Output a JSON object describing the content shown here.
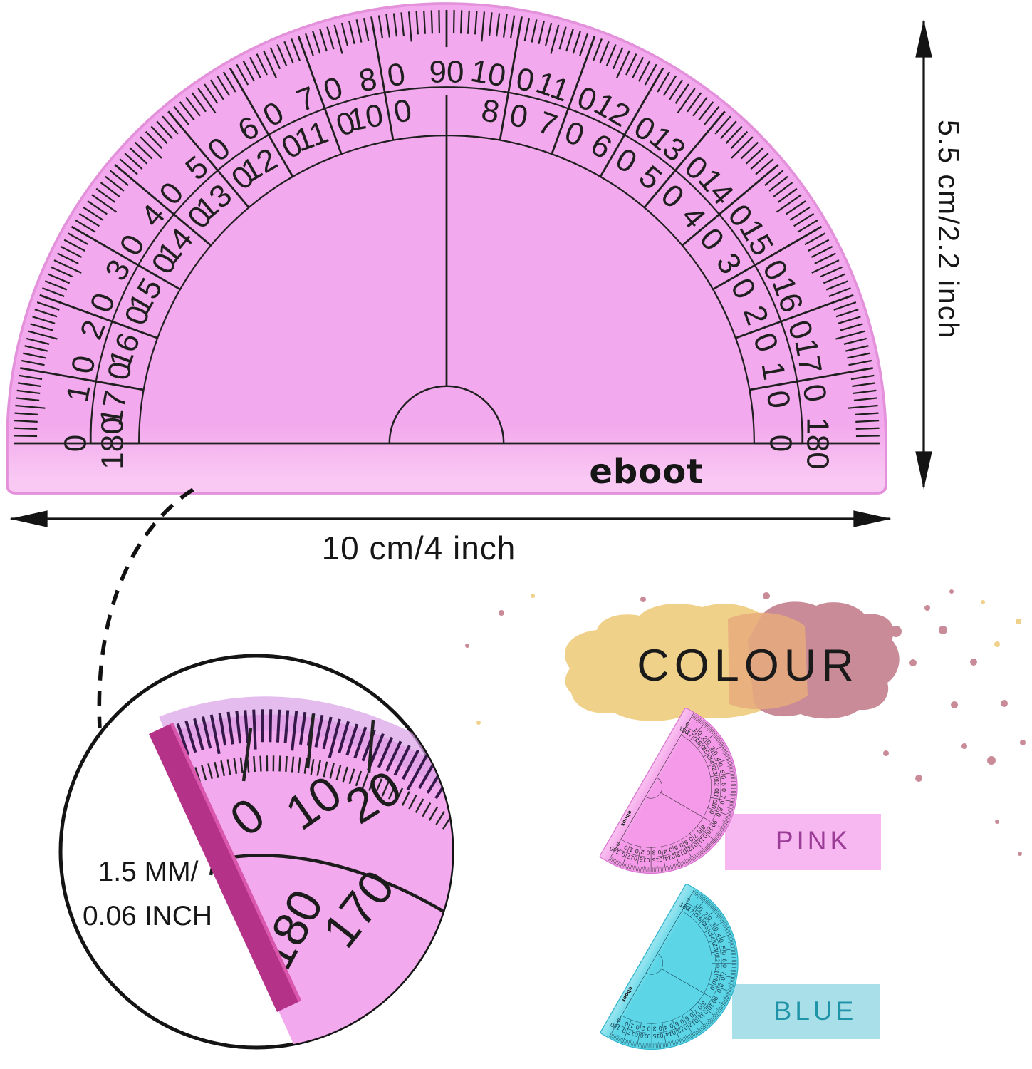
{
  "brand": {
    "logo_text": "eboot"
  },
  "dimensions": {
    "width_label": "10 cm/4 inch",
    "height_label": "5.5 cm/2.2 inch",
    "thickness_line1": "1.5 MM/",
    "thickness_line2": "0.06 INCH"
  },
  "colour_section": {
    "heading": "COLOUR",
    "variants": [
      {
        "name": "PINK"
      },
      {
        "name": "BLUE"
      }
    ]
  },
  "protractor_scale": {
    "outer_labels": [
      0,
      10,
      20,
      30,
      40,
      50,
      60,
      70,
      80,
      90,
      100,
      110,
      120,
      130,
      140,
      150,
      160,
      170,
      180
    ],
    "inner_labels": [
      180,
      170,
      160,
      150,
      140,
      130,
      120,
      110,
      100,
      80,
      70,
      60,
      50,
      40,
      30,
      20,
      10,
      0
    ]
  },
  "magnifier": {
    "outer_labels": [
      "0",
      "10",
      "20"
    ],
    "inner_labels": [
      "180",
      "170"
    ]
  },
  "colors": {
    "pink_body": "#f3a9ed",
    "pink_body_bottom": "#f9c8f3",
    "pink_rim": "#e391da",
    "line_dark": "#1f1f1f",
    "small_pink_body": "#f49ae9",
    "small_pink_bottom": "#f8bcef",
    "small_pink_rim": "#d873cf",
    "blue_body": "#5cd6e6",
    "blue_body_bottom": "#93e3ef",
    "blue_rim": "#2fb3ca",
    "blue_line": "#15394e",
    "pink_label_bg": "#f7b7f0",
    "blue_label_bg": "#a9dfe9",
    "splash_yellow": "#f0d189",
    "splash_rose": "#c88b97",
    "splash_orange": "#e6ac7c",
    "magenta_edge": "#b43288",
    "magenta_edge_hl": "#d957ad",
    "magnifier_band": "#d9a0e6",
    "arrow": "#141414"
  }
}
